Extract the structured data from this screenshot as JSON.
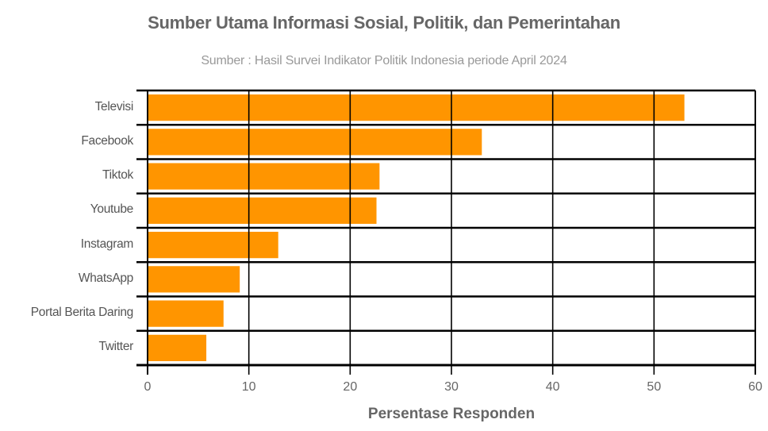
{
  "chart_data": {
    "type": "bar",
    "orientation": "horizontal",
    "title": "Sumber Utama Informasi Sosial, Politik, dan Pemerintahan",
    "subtitle": "Sumber : Hasil Survei Indikator Politik Indonesia periode April 2024",
    "xlabel": "Persentase Responden",
    "ylabel": "",
    "categories": [
      "Televisi",
      "Facebook",
      "Tiktok",
      "Youtube",
      "Instagram",
      "WhatsApp",
      "Portal Berita Daring",
      "Twitter"
    ],
    "values": [
      53.0,
      33.0,
      22.9,
      22.6,
      12.9,
      9.1,
      7.5,
      5.8
    ],
    "xlim": [
      0,
      60
    ],
    "xticks": [
      0,
      10,
      20,
      30,
      40,
      50,
      60
    ],
    "grid": true,
    "legend": "none",
    "colors": {
      "bar": "#ff9500",
      "grid": "#000000",
      "title": "#666666",
      "subtitle": "#999999",
      "label": "#555555"
    }
  }
}
